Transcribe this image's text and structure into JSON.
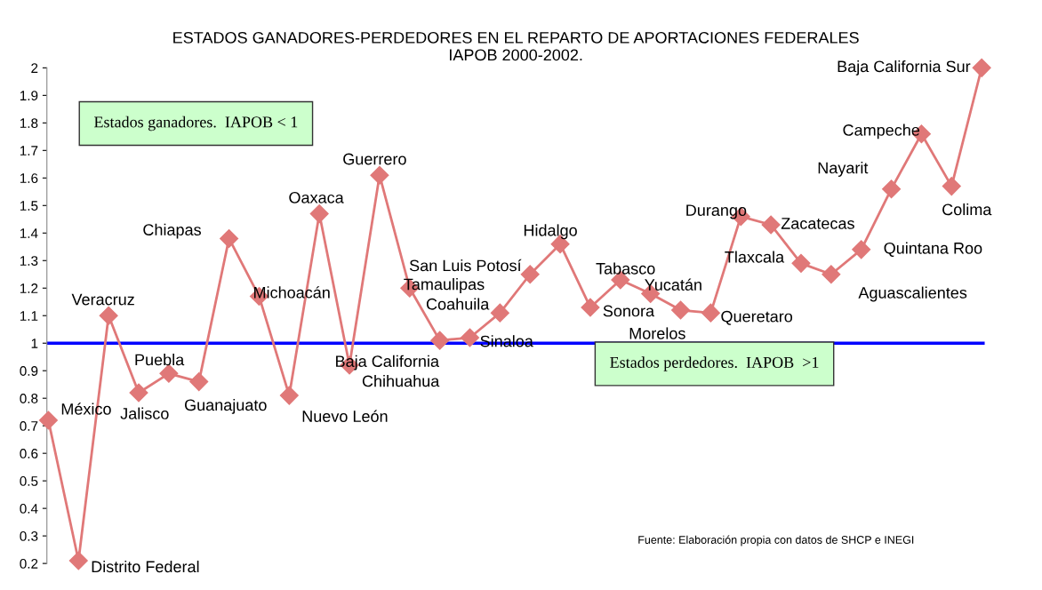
{
  "chart_data": {
    "type": "line",
    "title": "ESTADOS GANADORES-PERDEDORES EN EL REPARTO DE APORTACIONES FEDERALES\nIAPOB 2000-2002.",
    "categories": [
      null,
      null,
      null,
      null,
      null,
      null,
      null,
      null,
      null,
      null,
      null,
      null,
      null,
      null,
      null,
      null,
      null,
      null,
      null,
      null,
      null,
      null,
      null,
      null,
      null,
      null,
      null,
      null,
      null,
      null,
      null,
      null
    ],
    "series": [
      {
        "color": "#e07878",
        "values": [
          0.72,
          0.21,
          1.1,
          0.82,
          0.89,
          0.86,
          1.38,
          1.17,
          0.81,
          1.47,
          0.92,
          1.61,
          1.2,
          1.01,
          1.02,
          1.11,
          1.25,
          1.36,
          1.13,
          1.23,
          1.18,
          1.12,
          1.11,
          1.46,
          1.43,
          1.29,
          1.25,
          1.34,
          1.56,
          1.76,
          1.57,
          2.0
        ],
        "value_labels": [
          "México",
          "Distrito Federal",
          "Veracruz",
          "Jalisco",
          "Puebla",
          "Guanajuato",
          "Chiapas",
          "Michoacán",
          "Nuevo León",
          "Oaxaca",
          "Chihuahua",
          "Guerrero",
          "Tamaulipas",
          "Baja California",
          "Sinaloa",
          "Coahuila",
          "San Luis Potosí",
          "Hidalgo",
          "Sonora",
          "Tabasco",
          "Yucatán",
          "Morelos",
          "Queretaro",
          "Durango",
          "Zacatecas",
          "Tlaxcala",
          "Aguascalientes",
          "Quintana Roo",
          "Nayarit",
          "Campeche",
          "Colima",
          "Baja California Sur"
        ]
      }
    ],
    "marker": "diamond",
    "line_style": "solid",
    "tick_labels": "y",
    "ylim": [
      0.2,
      2
    ],
    "yticks": [
      0.2,
      0.3,
      0.4,
      0.5,
      0.6,
      0.7,
      0.8,
      0.9,
      1,
      1.1,
      1.2,
      1.3,
      1.4,
      1.5,
      1.6,
      1.7,
      1.8,
      1.9,
      2
    ],
    "ref_lines": [
      {
        "axis": "y",
        "value": 1,
        "color": "#0000ff"
      }
    ],
    "annotations": [
      "Estados ganadores.  IAPOB < 1",
      "Estados perdedores.  IAPOB  >1",
      "Fuente: Elaboración propia con datos de SHCP e INEGI"
    ]
  }
}
